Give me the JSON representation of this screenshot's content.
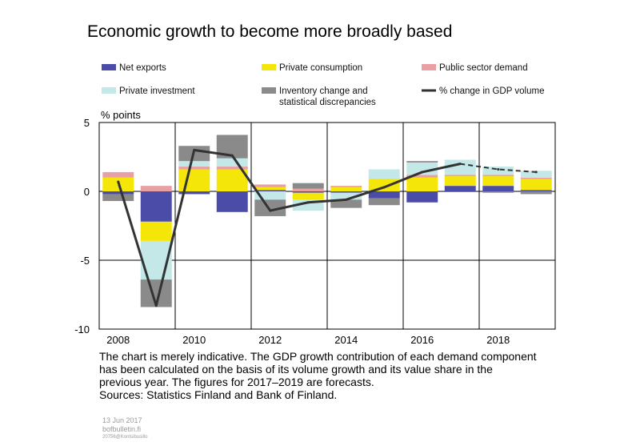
{
  "chart_data": {
    "type": "bar",
    "stacked": true,
    "title": "Economic growth to become more broadly based",
    "ylabel": "% points",
    "ylim": [
      -10,
      5
    ],
    "yticks": [
      5,
      0,
      -5,
      -10
    ],
    "year_labels": [
      "2008",
      "2010",
      "2012",
      "2014",
      "2016",
      "2018"
    ],
    "categories": [
      "2008",
      "2009",
      "2010",
      "2011",
      "2012",
      "2013",
      "2014",
      "2015",
      "2016",
      "2017",
      "2018",
      "2019"
    ],
    "forecast_from": "2017",
    "series": [
      {
        "name": "Net exports",
        "color": "#4b4ba8",
        "values": [
          -0.2,
          -2.2,
          -0.2,
          -1.5,
          0.1,
          -0.1,
          -0.1,
          -0.5,
          -0.8,
          0.4,
          0.4,
          0.1
        ]
      },
      {
        "name": "Private consumption",
        "color": "#f5e60a",
        "values": [
          1.0,
          -1.4,
          1.6,
          1.6,
          0.2,
          -0.5,
          0.3,
          0.9,
          1.0,
          0.7,
          0.7,
          0.8
        ]
      },
      {
        "name": "Public sector demand",
        "color": "#e8a0a4",
        "values": [
          0.4,
          0.4,
          0.2,
          0.2,
          0.2,
          0.2,
          0.1,
          0.0,
          0.2,
          0.1,
          0.1,
          0.1
        ]
      },
      {
        "name": "Private investment",
        "color": "#c4e8e8",
        "values": [
          0.0,
          -2.8,
          0.4,
          0.6,
          -0.6,
          -0.8,
          -0.5,
          0.7,
          0.9,
          1.1,
          0.6,
          0.5
        ]
      },
      {
        "name": "Inventory change and statistical discrepancies",
        "color": "#8a8a8a",
        "values": [
          -0.5,
          -2.0,
          1.1,
          1.7,
          -1.2,
          0.4,
          -0.6,
          -0.5,
          0.1,
          0.0,
          -0.1,
          -0.2
        ]
      }
    ],
    "line": {
      "name": "% change in GDP volume",
      "color": "#333333",
      "values": [
        0.7,
        -8.3,
        3.0,
        2.6,
        -1.4,
        -0.8,
        -0.6,
        0.3,
        1.4,
        2.0,
        1.6,
        1.4
      ]
    },
    "legend_layout": [
      [
        "Net exports",
        "Private consumption",
        "Public sector demand"
      ],
      [
        "Private investment",
        "Inventory change and statistical discrepancies",
        "% change in GDP volume"
      ]
    ]
  },
  "legend": {
    "net_exports": "Net exports",
    "private_consumption": "Private consumption",
    "public_sector_demand": "Public sector demand",
    "private_investment": "Private investment",
    "inventory_line1": "Inventory change and",
    "inventory_line2": "statistical discrepancies",
    "gdp_volume": "% change in GDP volume"
  },
  "footnote": {
    "line1": "The chart is merely indicative. The GDP growth contribution of each demand component",
    "line2": "has been calculated on the basis of its volume growth and its value share in the",
    "line3": "previous year. The figures for 2017–2019 are forecasts.",
    "sources": "Sources: Statistics Finland and Bank of Finland."
  },
  "meta": {
    "date": "13 Jun 2017",
    "site": "bofbulletin.fi",
    "code": "20756@Kontsibusillo"
  }
}
